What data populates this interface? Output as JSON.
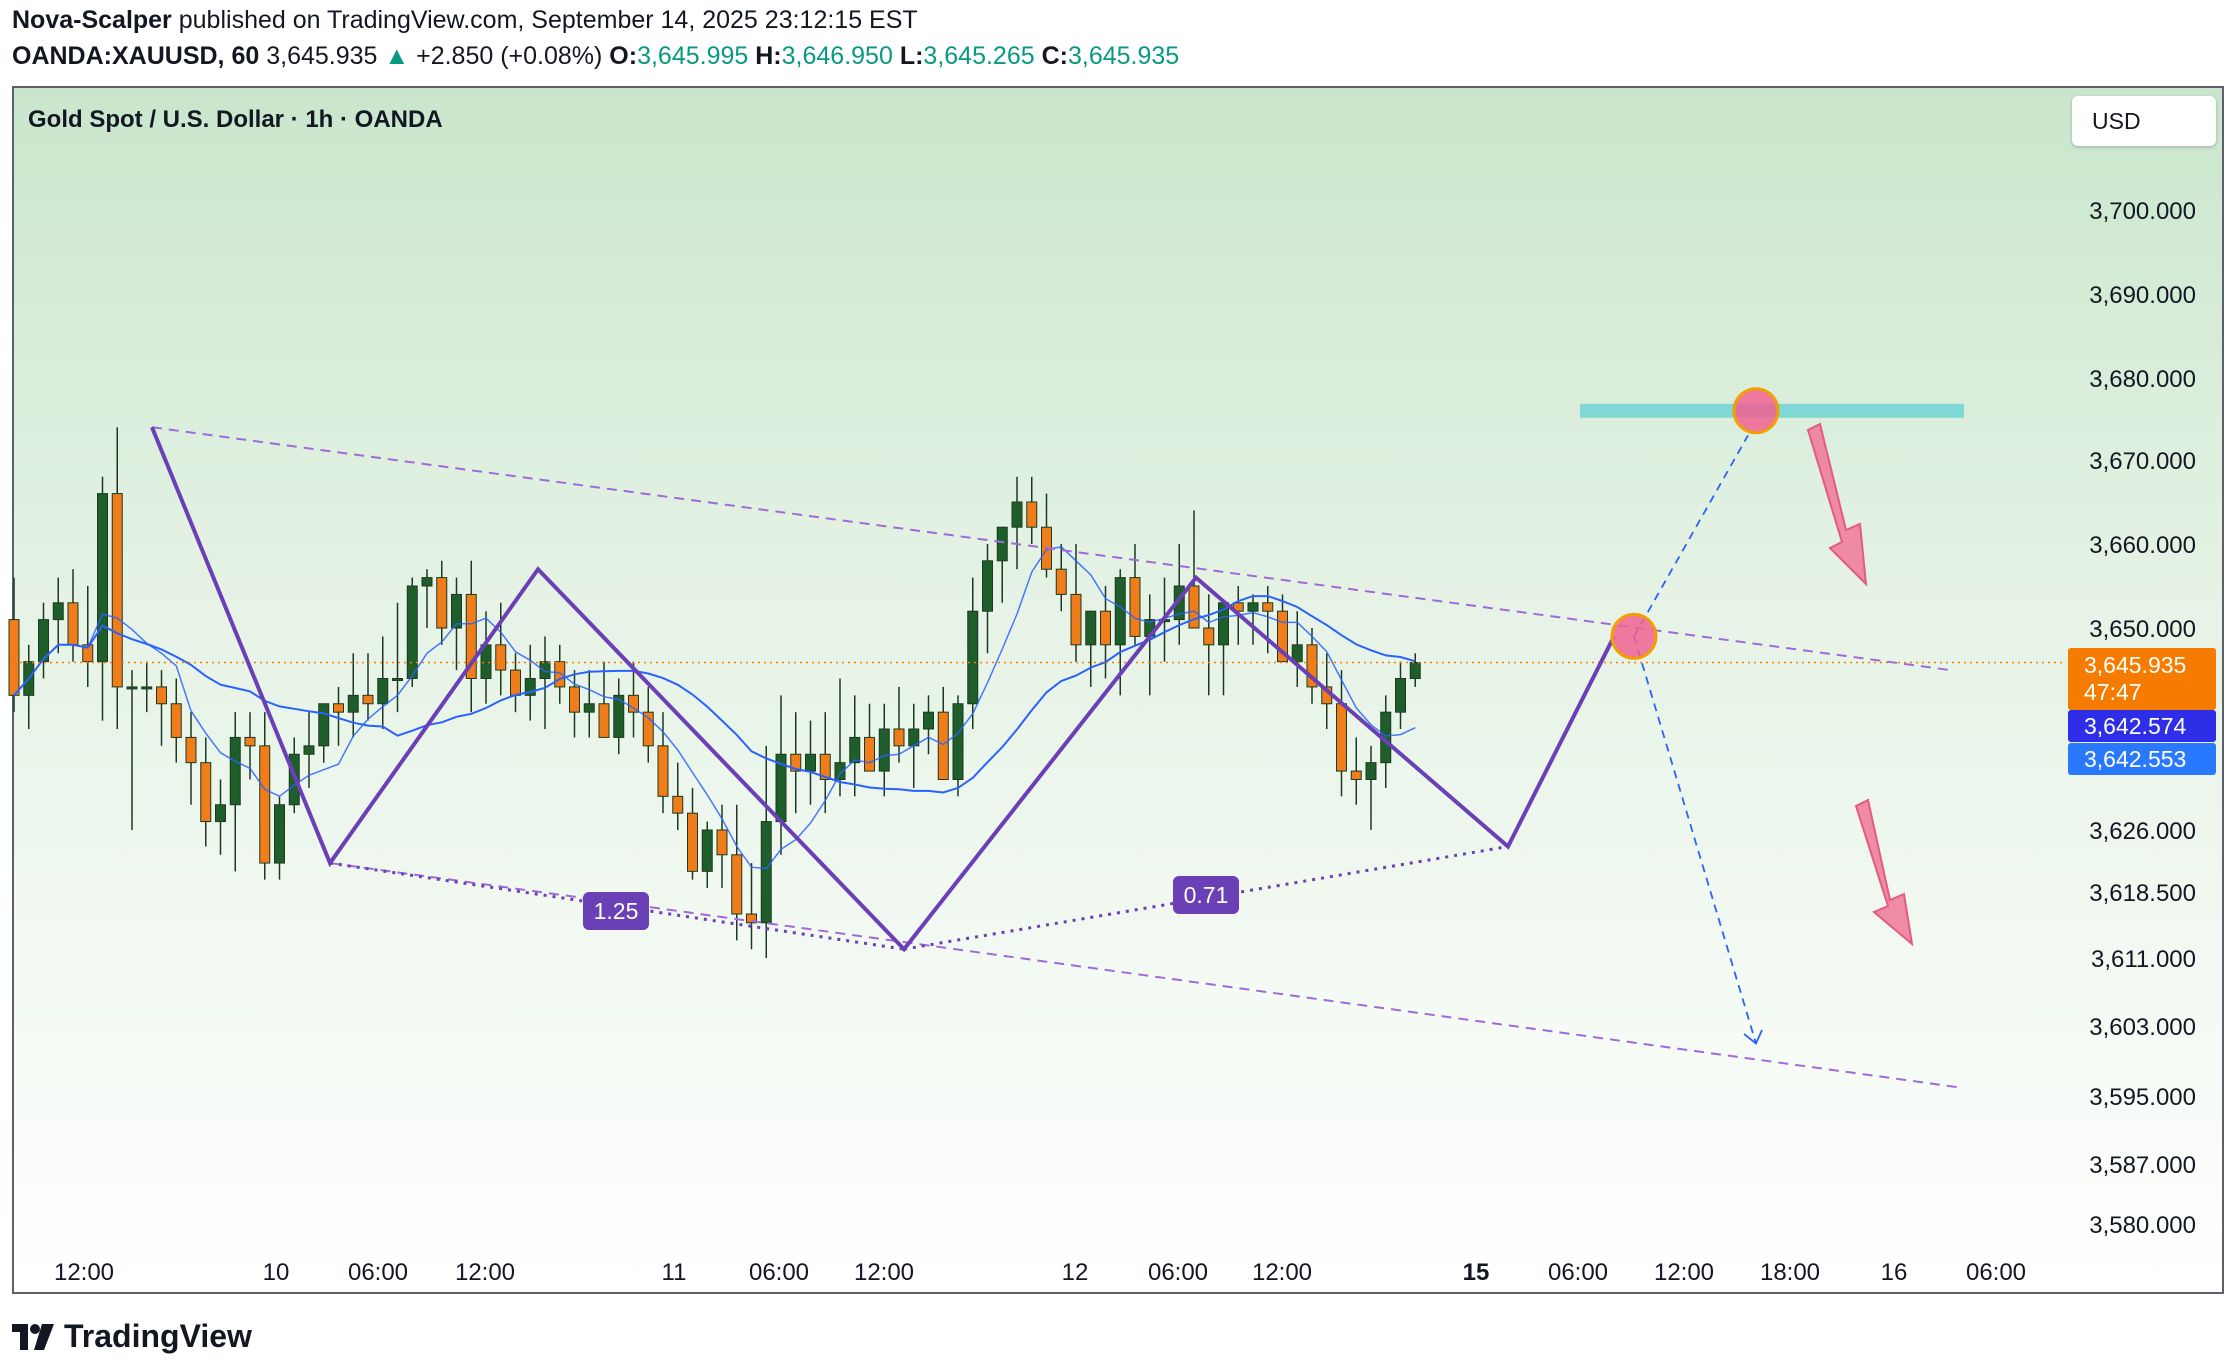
{
  "header": {
    "author": "Nova-Scalper",
    "published": "published on TradingView.com, September 14, 2025 23:12:15 EST",
    "symbol": "OANDA:XAUUSD, 60",
    "price": "3,645.935",
    "change": "+2.850 (+0.08%)",
    "o_label": "O:",
    "o": "3,645.995",
    "h_label": "H:",
    "h": "3,646.950",
    "l_label": "L:",
    "l": "3,645.265",
    "c_label": "C:",
    "c": "3,645.935"
  },
  "chart_title": "Gold Spot / U.S. Dollar · 1h · OANDA",
  "currency_button": "USD",
  "price_tags": {
    "last": "3,645.935",
    "countdown": "47:47",
    "ma_fast": "3,642.574",
    "ma_slow": "3,642.553"
  },
  "footer": {
    "brand": "TradingView"
  },
  "colors": {
    "up": "#1e5e2b",
    "down": "#f07d1a",
    "pattern": "#6b3fb5",
    "ma_fast": "#2962ff",
    "ma_slow": "#2962ff",
    "target_zone": "#7fd8d6",
    "arrow": "#f07896",
    "last_price": "#f57c00"
  },
  "chart_data": {
    "type": "candlestick",
    "ylim": [
      3576,
      3708
    ],
    "y_ticks": [
      "3,700.000",
      "3,690.000",
      "3,680.000",
      "3,670.000",
      "3,660.000",
      "3,650.000",
      "3,626.000",
      "3,618.500",
      "3,611.000",
      "3,603.000",
      "3,595.000",
      "3,587.000",
      "3,580.000"
    ],
    "x_ticks": [
      "12:00",
      "10",
      "06:00",
      "12:00",
      "11",
      "06:00",
      "12:00",
      "12",
      "06:00",
      "12:00",
      "15",
      "06:00",
      "12:00",
      "18:00",
      "16",
      "06:00"
    ],
    "candles": [
      [
        3651,
        3656,
        3640,
        3642
      ],
      [
        3642,
        3648,
        3638,
        3646
      ],
      [
        3646,
        3653,
        3644,
        3651
      ],
      [
        3651,
        3656,
        3647,
        3653
      ],
      [
        3653,
        3657,
        3646,
        3648
      ],
      [
        3648,
        3655,
        3643,
        3646
      ],
      [
        3646,
        3668,
        3639,
        3666
      ],
      [
        3666,
        3674,
        3638,
        3643
      ],
      [
        3643,
        3645,
        3626,
        3643
      ],
      [
        3643,
        3646,
        3640,
        3643
      ],
      [
        3643,
        3645,
        3636,
        3641
      ],
      [
        3641,
        3644,
        3634,
        3637
      ],
      [
        3637,
        3640,
        3629,
        3634
      ],
      [
        3634,
        3637,
        3624,
        3627
      ],
      [
        3627,
        3632,
        3623,
        3629
      ],
      [
        3629,
        3640,
        3621,
        3637
      ],
      [
        3637,
        3640,
        3632,
        3636
      ],
      [
        3636,
        3640,
        3620,
        3622
      ],
      [
        3622,
        3630,
        3620,
        3629
      ],
      [
        3629,
        3637,
        3628,
        3635
      ],
      [
        3635,
        3640,
        3631,
        3636
      ],
      [
        3636,
        3641,
        3634,
        3641
      ],
      [
        3641,
        3643,
        3636,
        3640
      ],
      [
        3640,
        3647,
        3637,
        3642
      ],
      [
        3642,
        3647,
        3639,
        3641
      ],
      [
        3641,
        3649,
        3638,
        3644
      ],
      [
        3644,
        3653,
        3640,
        3644
      ],
      [
        3644,
        3656,
        3643,
        3655
      ],
      [
        3655,
        3657,
        3650,
        3656
      ],
      [
        3656,
        3658,
        3648,
        3650
      ],
      [
        3650,
        3656,
        3645,
        3654
      ],
      [
        3654,
        3658,
        3640,
        3644
      ],
      [
        3644,
        3652,
        3641,
        3648
      ],
      [
        3648,
        3653,
        3642,
        3645
      ],
      [
        3645,
        3647,
        3640,
        3642
      ],
      [
        3642,
        3648,
        3639,
        3644
      ],
      [
        3644,
        3649,
        3638,
        3646
      ],
      [
        3646,
        3648,
        3641,
        3643
      ],
      [
        3643,
        3645,
        3637,
        3640
      ],
      [
        3640,
        3645,
        3637,
        3641
      ],
      [
        3641,
        3646,
        3637,
        3637
      ],
      [
        3637,
        3644,
        3635,
        3642
      ],
      [
        3642,
        3646,
        3637,
        3640
      ],
      [
        3640,
        3643,
        3634,
        3636
      ],
      [
        3636,
        3640,
        3628,
        3630
      ],
      [
        3630,
        3634,
        3626,
        3628
      ],
      [
        3628,
        3631,
        3620,
        3621
      ],
      [
        3621,
        3627,
        3619,
        3626
      ],
      [
        3626,
        3629,
        3619,
        3623
      ],
      [
        3623,
        3629,
        3613,
        3616
      ],
      [
        3616,
        3622,
        3612,
        3615
      ],
      [
        3615,
        3636,
        3611,
        3627
      ],
      [
        3627,
        3642,
        3623,
        3635
      ],
      [
        3635,
        3640,
        3628,
        3633
      ],
      [
        3633,
        3639,
        3629,
        3635
      ],
      [
        3635,
        3640,
        3628,
        3632
      ],
      [
        3632,
        3644,
        3630,
        3634
      ],
      [
        3634,
        3642,
        3630,
        3637
      ],
      [
        3637,
        3641,
        3633,
        3633
      ],
      [
        3633,
        3641,
        3630,
        3638
      ],
      [
        3638,
        3643,
        3634,
        3636
      ],
      [
        3636,
        3641,
        3631,
        3638
      ],
      [
        3638,
        3642,
        3635,
        3640
      ],
      [
        3640,
        3643,
        3632,
        3632
      ],
      [
        3632,
        3642,
        3630,
        3641
      ],
      [
        3641,
        3656,
        3638,
        3652
      ],
      [
        3652,
        3660,
        3647,
        3658
      ],
      [
        3658,
        3662,
        3653,
        3662
      ],
      [
        3662,
        3668,
        3657,
        3665
      ],
      [
        3665,
        3668,
        3660,
        3662
      ],
      [
        3662,
        3666,
        3656,
        3657
      ],
      [
        3657,
        3660,
        3652,
        3654
      ],
      [
        3654,
        3660,
        3646,
        3648
      ],
      [
        3648,
        3652,
        3643,
        3652
      ],
      [
        3652,
        3655,
        3644,
        3648
      ],
      [
        3648,
        3657,
        3642,
        3656
      ],
      [
        3656,
        3660,
        3648,
        3649
      ],
      [
        3649,
        3654,
        3642,
        3651
      ],
      [
        3651,
        3656,
        3646,
        3651
      ],
      [
        3651,
        3660,
        3648,
        3655
      ],
      [
        3655,
        3664,
        3650,
        3650
      ],
      [
        3650,
        3654,
        3642,
        3648
      ],
      [
        3648,
        3653,
        3642,
        3653
      ],
      [
        3653,
        3655,
        3648,
        3652
      ],
      [
        3652,
        3654,
        3648,
        3653
      ],
      [
        3653,
        3655,
        3647,
        3652
      ],
      [
        3652,
        3654,
        3646,
        3646
      ],
      [
        3646,
        3652,
        3643,
        3648
      ],
      [
        3648,
        3650,
        3641,
        3643
      ],
      [
        3643,
        3647,
        3638,
        3641
      ],
      [
        3641,
        3645,
        3630,
        3633
      ],
      [
        3633,
        3637,
        3629,
        3632
      ],
      [
        3632,
        3636,
        3626,
        3634
      ],
      [
        3634,
        3642,
        3631,
        3640
      ],
      [
        3640,
        3646,
        3638,
        3644
      ],
      [
        3644,
        3647,
        3643,
        3645.9
      ]
    ],
    "annotations": {
      "ratio_left": "1.25",
      "ratio_right": "0.71",
      "target_level": 3676,
      "breakout_level": 3649,
      "projection_low": 3601
    }
  }
}
